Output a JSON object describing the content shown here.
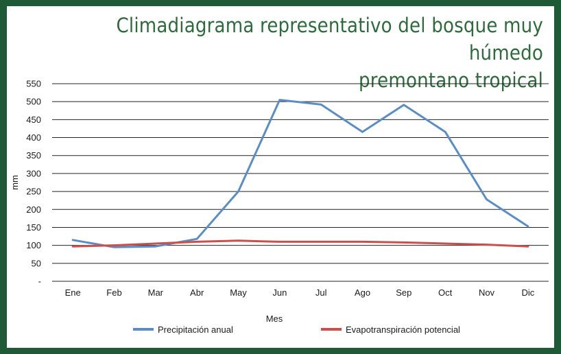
{
  "chart_data": {
    "type": "line",
    "title": "Climadiagrama representativo del bosque muy húmedo premontano tropical",
    "title_lines": [
      "Climadiagrama representativo del bosque muy húmedo",
      "premontano tropical"
    ],
    "xlabel": "Mes",
    "ylabel": "mm",
    "categories": [
      "Ene",
      "Feb",
      "Mar",
      "Abr",
      "May",
      "Jun",
      "Jul",
      "Ago",
      "Sep",
      "Oct",
      "Nov",
      "Dic"
    ],
    "ylim": [
      0,
      550
    ],
    "yticks": [
      0,
      50,
      100,
      150,
      200,
      250,
      300,
      350,
      400,
      450,
      500,
      550
    ],
    "ytick_labels": [
      "-",
      "50",
      "100",
      "150",
      "200",
      "250",
      "300",
      "350",
      "400",
      "450",
      "500",
      "550"
    ],
    "grid": true,
    "legend": "bottom",
    "series": [
      {
        "name": "Precipitación anual",
        "color": "#5b8dc5",
        "values": [
          115,
          95,
          97,
          118,
          250,
          505,
          492,
          416,
          491,
          416,
          228,
          153
        ]
      },
      {
        "name": "Evapotranspiración potencial",
        "color": "#c9504c",
        "values": [
          97,
          100,
          105,
          110,
          113,
          110,
          110,
          110,
          108,
          105,
          102,
          97
        ]
      }
    ]
  }
}
